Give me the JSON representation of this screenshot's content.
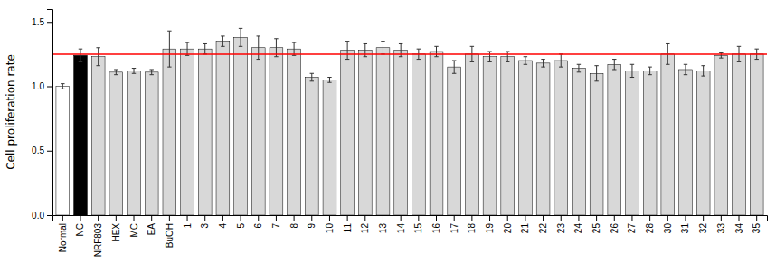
{
  "chart_data": {
    "type": "bar",
    "categories": [
      "Normal",
      "NC",
      "NRF803",
      "HEX",
      "MC",
      "EA",
      "BuOH",
      "1",
      "3",
      "4",
      "5",
      "6",
      "7",
      "8",
      "9",
      "10",
      "11",
      "12",
      "13",
      "14",
      "15",
      "16",
      "17",
      "18",
      "19",
      "20",
      "21",
      "22",
      "23",
      "24",
      "25",
      "26",
      "27",
      "28",
      "30",
      "31",
      "32",
      "33",
      "34",
      "35"
    ],
    "values": [
      1.0,
      1.24,
      1.23,
      1.11,
      1.12,
      1.11,
      1.29,
      1.29,
      1.29,
      1.35,
      1.38,
      1.3,
      1.3,
      1.29,
      1.07,
      1.05,
      1.28,
      1.28,
      1.3,
      1.28,
      1.25,
      1.27,
      1.15,
      1.25,
      1.23,
      1.23,
      1.2,
      1.18,
      1.2,
      1.14,
      1.1,
      1.17,
      1.12,
      1.12,
      1.25,
      1.13,
      1.12,
      1.24,
      1.25,
      1.25
    ],
    "errors": [
      0.02,
      0.05,
      0.07,
      0.02,
      0.02,
      0.02,
      0.14,
      0.05,
      0.04,
      0.04,
      0.07,
      0.09,
      0.07,
      0.05,
      0.03,
      0.02,
      0.07,
      0.05,
      0.05,
      0.05,
      0.04,
      0.04,
      0.05,
      0.06,
      0.04,
      0.04,
      0.03,
      0.03,
      0.05,
      0.03,
      0.06,
      0.04,
      0.05,
      0.03,
      0.08,
      0.04,
      0.04,
      0.02,
      0.06,
      0.04
    ],
    "colors": [
      "white",
      "black",
      "#d8d8d8",
      "#d8d8d8",
      "#d8d8d8",
      "#d8d8d8",
      "#d8d8d8",
      "#d8d8d8",
      "#d8d8d8",
      "#d8d8d8",
      "#d8d8d8",
      "#d8d8d8",
      "#d8d8d8",
      "#d8d8d8",
      "#d8d8d8",
      "#d8d8d8",
      "#d8d8d8",
      "#d8d8d8",
      "#d8d8d8",
      "#d8d8d8",
      "#d8d8d8",
      "#d8d8d8",
      "#d8d8d8",
      "#d8d8d8",
      "#d8d8d8",
      "#d8d8d8",
      "#d8d8d8",
      "#d8d8d8",
      "#d8d8d8",
      "#d8d8d8",
      "#d8d8d8",
      "#d8d8d8",
      "#d8d8d8",
      "#d8d8d8",
      "#d8d8d8",
      "#d8d8d8",
      "#d8d8d8",
      "#d8d8d8",
      "#d8d8d8",
      "#d8d8d8"
    ],
    "error_color": "#333333",
    "reference_line": {
      "y": 1.25,
      "color": "#ff0000"
    },
    "y_label": "Cell proliferation rate",
    "ylim": [
      0,
      1.6
    ],
    "yticks": [
      {
        "value": 0.0,
        "label": "0.0"
      },
      0.5,
      {
        "value": 1.0,
        "label": "1.0"
      },
      1.5
    ],
    "grid": false
  }
}
